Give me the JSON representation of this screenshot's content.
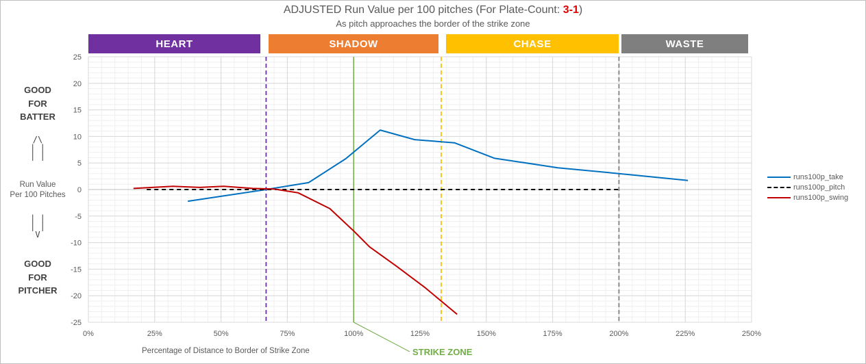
{
  "header": {
    "title_prefix": "ADJUSTED Run Value per 100 pitches (For Plate-Count: ",
    "title_count": "3-1",
    "title_suffix": ")",
    "subtitle": "As pitch approaches the border of the strike zone"
  },
  "zones": [
    {
      "label": "HEART",
      "color": "#7030a0"
    },
    {
      "label": "SHADOW",
      "color": "#ed7d31"
    },
    {
      "label": "CHASE",
      "color": "#ffc000"
    },
    {
      "label": "WASTE",
      "color": "#7f7f7f"
    }
  ],
  "side_labels": {
    "top_lines": [
      "GOOD",
      "FOR",
      "BATTER"
    ],
    "arrow_up": [
      "/\\",
      "| |",
      "| |"
    ],
    "middle_lines": [
      "Run Value",
      "Per 100 Pitches"
    ],
    "arrow_down": [
      "| |",
      "| |",
      "V"
    ],
    "bottom_lines": [
      "GOOD",
      "FOR",
      "PITCHER"
    ]
  },
  "strike_zone_label": "STRIKE ZONE",
  "chart_data": {
    "type": "line",
    "title": "ADJUSTED Run Value per 100 pitches (For Plate-Count: 3-1)",
    "subtitle": "As pitch approaches the border of the strike zone",
    "xlabel": "Percentage of Distance to Border of Strike Zone",
    "ylabel": "Run Value Per 100 Pitches",
    "xlim": [
      0,
      250
    ],
    "ylim": [
      -25,
      25
    ],
    "x_ticks": [
      0,
      25,
      50,
      75,
      100,
      125,
      150,
      175,
      200,
      225,
      250
    ],
    "x_tick_labels": [
      "0%",
      "25%",
      "50%",
      "75%",
      "100%",
      "125%",
      "150%",
      "175%",
      "200%",
      "225%",
      "250%"
    ],
    "y_ticks": [
      -25,
      -20,
      -15,
      -10,
      -5,
      0,
      5,
      10,
      15,
      20,
      25
    ],
    "y_tick_labels": [
      "-25",
      "-20",
      "-15",
      "-10",
      "-5",
      "0",
      "5",
      "10",
      "15",
      "20",
      "25"
    ],
    "grid": true,
    "legend_position": "right",
    "series": [
      {
        "name": "runs100p_take",
        "color": "#0070c0",
        "dash": "solid",
        "x": [
          37.5,
          67,
          83,
          97,
          110,
          123,
          138,
          153,
          177,
          200,
          226
        ],
        "y": [
          -2.2,
          0,
          1.3,
          5.8,
          11.2,
          9.4,
          8.8,
          5.9,
          4.1,
          3.0,
          1.7
        ]
      },
      {
        "name": "runs100p_pitch",
        "color": "#000000",
        "dash": "dashed",
        "x": [
          22,
          200
        ],
        "y": [
          0,
          0
        ]
      },
      {
        "name": "runs100p_swing",
        "color": "#c00000",
        "dash": "solid",
        "x": [
          17,
          32,
          42,
          51,
          62,
          70,
          79,
          91,
          100,
          106,
          116,
          127,
          139
        ],
        "y": [
          0.2,
          0.6,
          0.4,
          0.6,
          0.2,
          0.1,
          -0.6,
          -3.6,
          -7.8,
          -10.8,
          -14.4,
          -18.5,
          -23.5
        ]
      }
    ],
    "reference_lines": [
      {
        "x": 67,
        "color": "#7030a0",
        "dash": "dashed",
        "zone": "HEART"
      },
      {
        "x": 100,
        "color": "#70ad47",
        "dash": "solid",
        "label": "STRIKE ZONE"
      },
      {
        "x": 133,
        "color": "#ffc000",
        "dash": "dashed",
        "zone": "CHASE"
      },
      {
        "x": 200,
        "color": "#7f7f7f",
        "dash": "dashed",
        "zone": "WASTE"
      }
    ]
  }
}
